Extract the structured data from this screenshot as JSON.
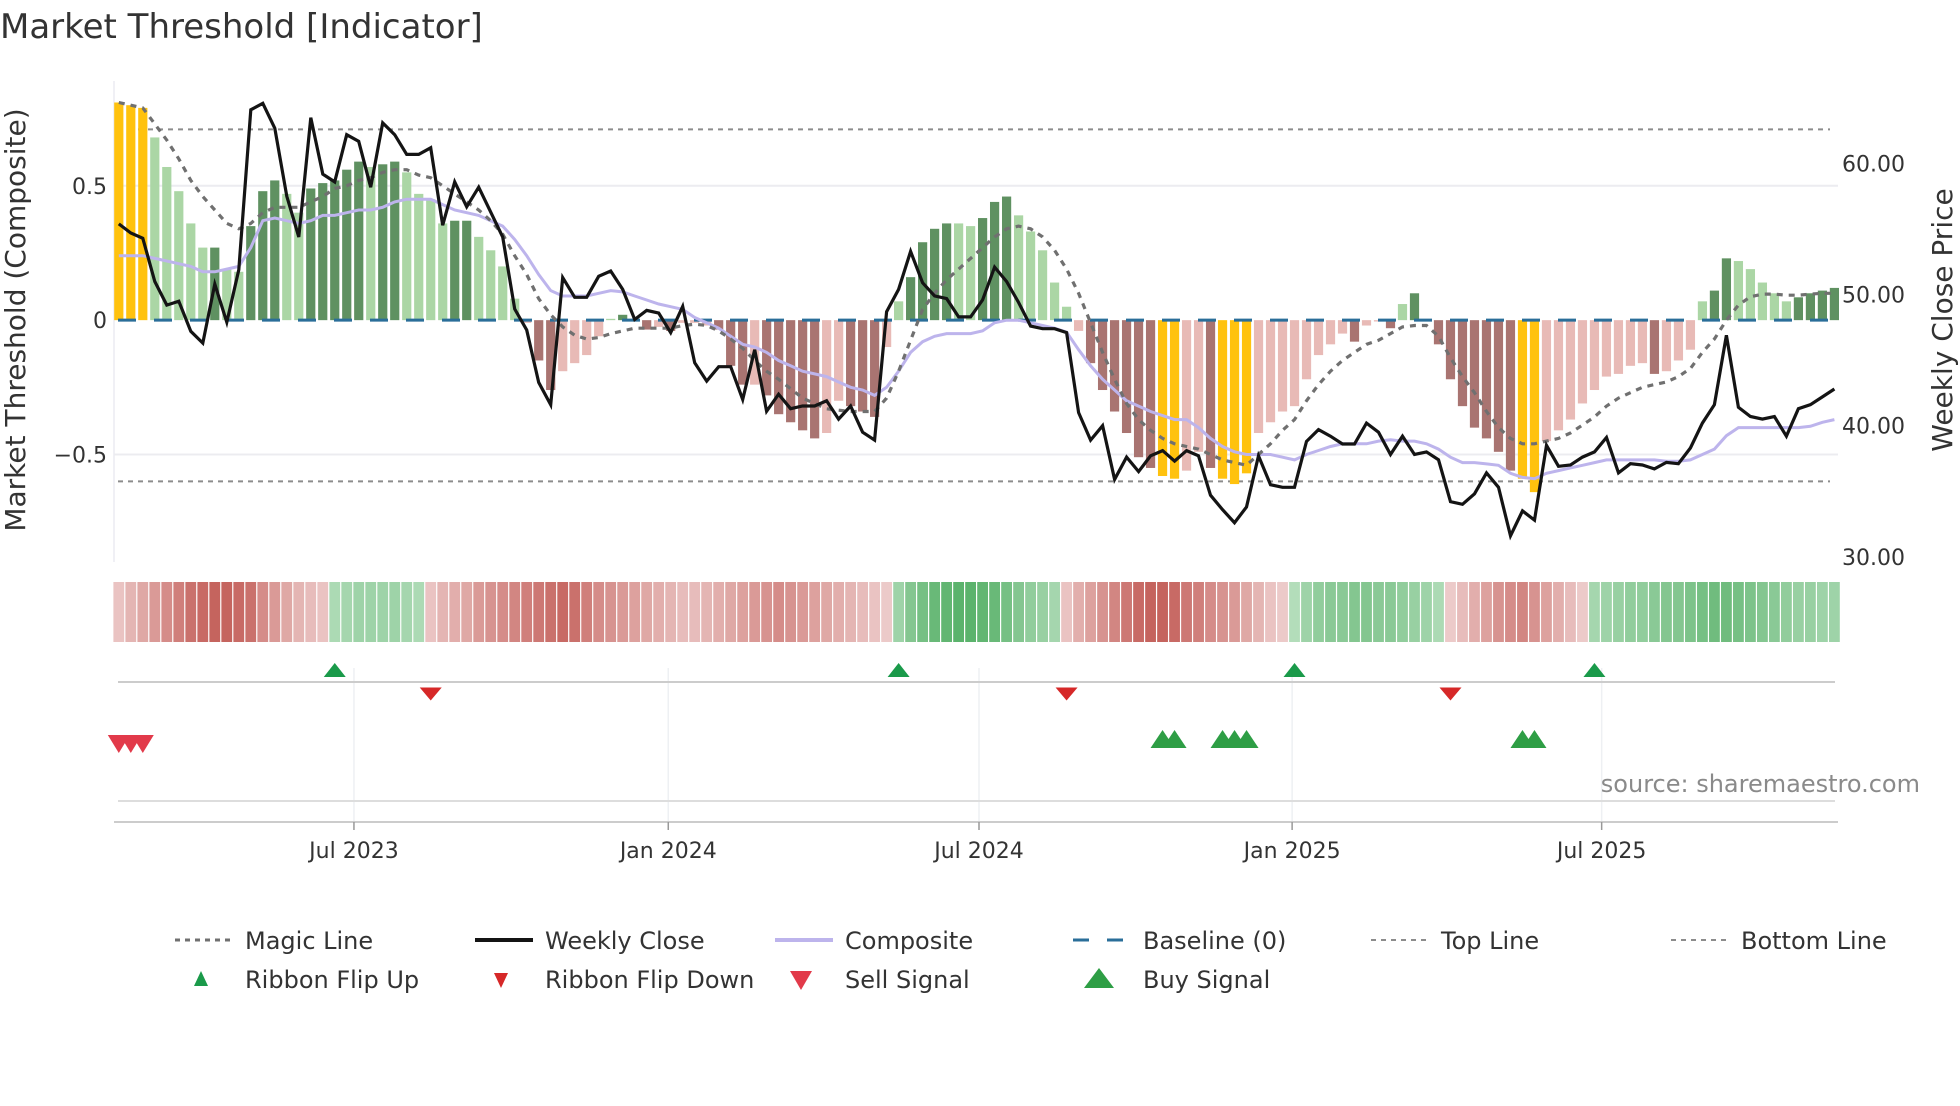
{
  "chart_data": {
    "type": "bar",
    "title": "Market Threshold [Indicator]",
    "ylabel_left": "Market Threshold (Composite)",
    "ylabel_right": "Weekly Close Price",
    "ylim_left": [
      -0.9,
      0.89
    ],
    "ylim_right": [
      29.6,
      66.3
    ],
    "yticks_left": [
      {
        "v": 0.5,
        "label": "0.5"
      },
      {
        "v": 0,
        "label": "0"
      },
      {
        "v": -0.5,
        "label": "−0.5"
      }
    ],
    "yticks_right": [
      {
        "v": 60,
        "label": "60.00"
      },
      {
        "v": 50,
        "label": "50.00"
      },
      {
        "v": 40,
        "label": "40.00"
      },
      {
        "v": 30,
        "label": "30.00"
      }
    ],
    "xticks": [
      {
        "week": 20.6,
        "label": "Jul 2023"
      },
      {
        "week": 46.8,
        "label": "Jan 2024"
      },
      {
        "week": 72.7,
        "label": "Jul 2024"
      },
      {
        "week": 98.8,
        "label": "Jan 2025"
      },
      {
        "week": 124.6,
        "label": "Jul 2025"
      }
    ],
    "x_range_weeks": [
      0.6,
      144.3
    ],
    "top_line": 0.71,
    "bottom_line": -0.6,
    "baseline": 0,
    "bar_types": {
      "Y": "signal",
      "G": "strong-up",
      "g": "weak-up",
      "R": "strong-down",
      "r": "weak-down"
    },
    "bars": [
      [
        0.81,
        "Y"
      ],
      [
        0.8,
        "Y"
      ],
      [
        0.79,
        "Y"
      ],
      [
        0.68,
        "g"
      ],
      [
        0.57,
        "g"
      ],
      [
        0.48,
        "g"
      ],
      [
        0.36,
        "g"
      ],
      [
        0.27,
        "g"
      ],
      [
        0.27,
        "G"
      ],
      [
        0.19,
        "g"
      ],
      [
        0.18,
        "g"
      ],
      [
        0.35,
        "G"
      ],
      [
        0.48,
        "G"
      ],
      [
        0.52,
        "G"
      ],
      [
        0.47,
        "g"
      ],
      [
        0.4,
        "g"
      ],
      [
        0.49,
        "G"
      ],
      [
        0.51,
        "G"
      ],
      [
        0.52,
        "G"
      ],
      [
        0.56,
        "G"
      ],
      [
        0.59,
        "G"
      ],
      [
        0.57,
        "g"
      ],
      [
        0.58,
        "G"
      ],
      [
        0.59,
        "G"
      ],
      [
        0.55,
        "g"
      ],
      [
        0.47,
        "g"
      ],
      [
        0.45,
        "g"
      ],
      [
        0.36,
        "g"
      ],
      [
        0.37,
        "G"
      ],
      [
        0.37,
        "G"
      ],
      [
        0.31,
        "g"
      ],
      [
        0.26,
        "g"
      ],
      [
        0.2,
        "g"
      ],
      [
        0.08,
        "g"
      ],
      [
        -0.01,
        "r"
      ],
      [
        -0.15,
        "R"
      ],
      [
        -0.26,
        "R"
      ],
      [
        -0.19,
        "r"
      ],
      [
        -0.16,
        "r"
      ],
      [
        -0.13,
        "r"
      ],
      [
        -0.06,
        "r"
      ],
      [
        0.005,
        "g"
      ],
      [
        0.02,
        "G"
      ],
      [
        -0.005,
        "r"
      ],
      [
        -0.035,
        "R"
      ],
      [
        -0.025,
        "r"
      ],
      [
        -0.04,
        "R"
      ],
      [
        -0.01,
        "r"
      ],
      [
        -0.01,
        "r"
      ],
      [
        -0.02,
        "r"
      ],
      [
        -0.035,
        "R"
      ],
      [
        -0.17,
        "R"
      ],
      [
        -0.24,
        "R"
      ],
      [
        -0.24,
        "r"
      ],
      [
        -0.28,
        "R"
      ],
      [
        -0.35,
        "R"
      ],
      [
        -0.38,
        "R"
      ],
      [
        -0.41,
        "R"
      ],
      [
        -0.44,
        "R"
      ],
      [
        -0.42,
        "r"
      ],
      [
        -0.3,
        "r"
      ],
      [
        -0.32,
        "R"
      ],
      [
        -0.34,
        "R"
      ],
      [
        -0.36,
        "R"
      ],
      [
        -0.1,
        "r"
      ],
      [
        0.07,
        "g"
      ],
      [
        0.16,
        "G"
      ],
      [
        0.29,
        "G"
      ],
      [
        0.34,
        "G"
      ],
      [
        0.36,
        "G"
      ],
      [
        0.36,
        "g"
      ],
      [
        0.35,
        "g"
      ],
      [
        0.38,
        "G"
      ],
      [
        0.44,
        "G"
      ],
      [
        0.46,
        "G"
      ],
      [
        0.39,
        "g"
      ],
      [
        0.33,
        "g"
      ],
      [
        0.26,
        "g"
      ],
      [
        0.14,
        "g"
      ],
      [
        0.05,
        "g"
      ],
      [
        -0.04,
        "r"
      ],
      [
        -0.16,
        "R"
      ],
      [
        -0.26,
        "R"
      ],
      [
        -0.34,
        "R"
      ],
      [
        -0.42,
        "R"
      ],
      [
        -0.51,
        "R"
      ],
      [
        -0.55,
        "R"
      ],
      [
        -0.58,
        "Y"
      ],
      [
        -0.59,
        "Y"
      ],
      [
        -0.56,
        "r"
      ],
      [
        -0.49,
        "r"
      ],
      [
        -0.55,
        "R"
      ],
      [
        -0.59,
        "Y"
      ],
      [
        -0.61,
        "Y"
      ],
      [
        -0.57,
        "Y"
      ],
      [
        -0.42,
        "r"
      ],
      [
        -0.38,
        "r"
      ],
      [
        -0.34,
        "r"
      ],
      [
        -0.32,
        "r"
      ],
      [
        -0.22,
        "r"
      ],
      [
        -0.13,
        "r"
      ],
      [
        -0.09,
        "r"
      ],
      [
        -0.05,
        "r"
      ],
      [
        -0.08,
        "R"
      ],
      [
        -0.02,
        "r"
      ],
      [
        -0.005,
        "r"
      ],
      [
        -0.03,
        "R"
      ],
      [
        0.06,
        "g"
      ],
      [
        0.1,
        "G"
      ],
      [
        -0.005,
        "r"
      ],
      [
        -0.09,
        "R"
      ],
      [
        -0.22,
        "R"
      ],
      [
        -0.32,
        "R"
      ],
      [
        -0.4,
        "R"
      ],
      [
        -0.44,
        "R"
      ],
      [
        -0.49,
        "R"
      ],
      [
        -0.56,
        "R"
      ],
      [
        -0.59,
        "Y"
      ],
      [
        -0.64,
        "Y"
      ],
      [
        -0.45,
        "r"
      ],
      [
        -0.41,
        "r"
      ],
      [
        -0.37,
        "r"
      ],
      [
        -0.31,
        "r"
      ],
      [
        -0.26,
        "r"
      ],
      [
        -0.21,
        "r"
      ],
      [
        -0.2,
        "r"
      ],
      [
        -0.17,
        "r"
      ],
      [
        -0.16,
        "r"
      ],
      [
        -0.2,
        "R"
      ],
      [
        -0.19,
        "r"
      ],
      [
        -0.15,
        "r"
      ],
      [
        -0.11,
        "r"
      ],
      [
        0.07,
        "g"
      ],
      [
        0.11,
        "G"
      ],
      [
        0.23,
        "G"
      ],
      [
        0.22,
        "g"
      ],
      [
        0.19,
        "g"
      ],
      [
        0.14,
        "g"
      ],
      [
        0.1,
        "g"
      ],
      [
        0.07,
        "g"
      ],
      [
        0.085,
        "G"
      ],
      [
        0.1,
        "G"
      ],
      [
        0.11,
        "G"
      ],
      [
        0.12,
        "G"
      ]
    ],
    "weekly_close": [
      55.4,
      54.7,
      54.3,
      51.0,
      49.2,
      49.5,
      47.2,
      46.3,
      50.8,
      47.9,
      51.9,
      64.1,
      64.6,
      62.7,
      57.5,
      54.4,
      63.5,
      59.2,
      58.6,
      62.2,
      61.7,
      58.2,
      63.1,
      62.2,
      60.7,
      60.7,
      61.2,
      55.3,
      58.6,
      56.7,
      58.2,
      56.3,
      54.4,
      48.9,
      47.3,
      43.3,
      41.6,
      51.3,
      49.8,
      49.8,
      51.4,
      51.8,
      50.4,
      48.1,
      48.8,
      48.6,
      47.1,
      49.1,
      44.8,
      43.4,
      44.5,
      44.5,
      42.0,
      45.8,
      41.1,
      42.4,
      41.3,
      41.5,
      41.5,
      41.9,
      40.5,
      41.5,
      39.5,
      38.9,
      48.7,
      50.4,
      53.3,
      50.9,
      49.9,
      49.7,
      48.3,
      48.3,
      49.6,
      52.1,
      51.0,
      49.4,
      47.6,
      47.4,
      47.4,
      47.1,
      41.0,
      38.9,
      40.0,
      35.9,
      37.6,
      36.5,
      37.7,
      38.1,
      37.3,
      38.1,
      37.7,
      34.7,
      33.6,
      32.6,
      33.8,
      37.7,
      35.5,
      35.3,
      35.3,
      38.8,
      39.7,
      39.2,
      38.6,
      38.6,
      40.2,
      39.5,
      37.8,
      39.2,
      37.8,
      38.0,
      37.4,
      34.2,
      34.0,
      34.8,
      36.4,
      35.3,
      31.6,
      33.5,
      32.8,
      38.5,
      36.9,
      37.0,
      37.6,
      38.0,
      39.1,
      36.4,
      37.1,
      37.0,
      36.7,
      37.2,
      37.1,
      38.3,
      40.2,
      41.6,
      46.9,
      41.4,
      40.7,
      40.5,
      40.7,
      39.2,
      41.3,
      41.6,
      42.2,
      42.8
    ],
    "composite": [
      0.24,
      0.24,
      0.24,
      0.23,
      0.22,
      0.21,
      0.2,
      0.18,
      0.18,
      0.19,
      0.2,
      0.27,
      0.37,
      0.38,
      0.37,
      0.36,
      0.37,
      0.39,
      0.39,
      0.4,
      0.41,
      0.41,
      0.42,
      0.44,
      0.45,
      0.45,
      0.45,
      0.43,
      0.41,
      0.4,
      0.39,
      0.37,
      0.35,
      0.3,
      0.24,
      0.17,
      0.11,
      0.09,
      0.09,
      0.09,
      0.1,
      0.11,
      0.105,
      0.09,
      0.075,
      0.06,
      0.05,
      0.04,
      0.01,
      -0.01,
      -0.03,
      -0.06,
      -0.09,
      -0.1,
      -0.12,
      -0.15,
      -0.17,
      -0.19,
      -0.2,
      -0.21,
      -0.23,
      -0.25,
      -0.26,
      -0.28,
      -0.25,
      -0.19,
      -0.12,
      -0.08,
      -0.06,
      -0.05,
      -0.05,
      -0.05,
      -0.04,
      -0.01,
      0.0,
      0.0,
      -0.01,
      -0.02,
      -0.03,
      -0.045,
      -0.11,
      -0.17,
      -0.22,
      -0.26,
      -0.3,
      -0.32,
      -0.34,
      -0.355,
      -0.37,
      -0.37,
      -0.4,
      -0.44,
      -0.47,
      -0.49,
      -0.5,
      -0.5,
      -0.5,
      -0.51,
      -0.52,
      -0.5,
      -0.485,
      -0.47,
      -0.46,
      -0.46,
      -0.46,
      -0.45,
      -0.445,
      -0.45,
      -0.45,
      -0.46,
      -0.48,
      -0.51,
      -0.53,
      -0.53,
      -0.535,
      -0.54,
      -0.57,
      -0.585,
      -0.59,
      -0.57,
      -0.56,
      -0.55,
      -0.54,
      -0.53,
      -0.52,
      -0.52,
      -0.52,
      -0.52,
      -0.52,
      -0.525,
      -0.525,
      -0.52,
      -0.5,
      -0.48,
      -0.43,
      -0.4,
      -0.4,
      -0.4,
      -0.4,
      -0.4,
      -0.4,
      -0.395,
      -0.38,
      -0.37
    ],
    "magic_line": [
      0.81,
      0.8,
      0.79,
      0.73,
      0.67,
      0.6,
      0.52,
      0.46,
      0.41,
      0.36,
      0.34,
      0.36,
      0.4,
      0.42,
      0.42,
      0.42,
      0.44,
      0.46,
      0.49,
      0.5,
      0.52,
      0.53,
      0.55,
      0.56,
      0.56,
      0.54,
      0.53,
      0.5,
      0.47,
      0.44,
      0.41,
      0.37,
      0.32,
      0.24,
      0.17,
      0.08,
      0.02,
      -0.025,
      -0.056,
      -0.07,
      -0.065,
      -0.05,
      -0.04,
      -0.03,
      -0.03,
      -0.03,
      -0.03,
      -0.02,
      -0.015,
      -0.02,
      -0.04,
      -0.07,
      -0.105,
      -0.15,
      -0.19,
      -0.22,
      -0.255,
      -0.29,
      -0.31,
      -0.33,
      -0.335,
      -0.34,
      -0.34,
      -0.34,
      -0.29,
      -0.19,
      -0.075,
      0.04,
      0.1,
      0.15,
      0.19,
      0.23,
      0.27,
      0.31,
      0.34,
      0.35,
      0.34,
      0.31,
      0.26,
      0.19,
      0.1,
      -0.01,
      -0.12,
      -0.22,
      -0.31,
      -0.37,
      -0.41,
      -0.44,
      -0.46,
      -0.47,
      -0.48,
      -0.5,
      -0.52,
      -0.53,
      -0.54,
      -0.5,
      -0.46,
      -0.41,
      -0.37,
      -0.3,
      -0.24,
      -0.19,
      -0.15,
      -0.12,
      -0.09,
      -0.075,
      -0.05,
      -0.025,
      -0.02,
      -0.02,
      -0.06,
      -0.14,
      -0.21,
      -0.27,
      -0.34,
      -0.4,
      -0.44,
      -0.46,
      -0.46,
      -0.45,
      -0.44,
      -0.42,
      -0.39,
      -0.36,
      -0.32,
      -0.29,
      -0.27,
      -0.25,
      -0.24,
      -0.23,
      -0.21,
      -0.18,
      -0.12,
      -0.07,
      0.0,
      0.056,
      0.087,
      0.097,
      0.097,
      0.093,
      0.093,
      0.097,
      0.1,
      0.1
    ],
    "ribbon": [
      -0.2,
      -0.3,
      -0.4,
      -0.5,
      -0.6,
      -0.7,
      -0.8,
      -0.85,
      -0.9,
      -0.9,
      -0.85,
      -0.8,
      -0.6,
      -0.5,
      -0.4,
      -0.3,
      -0.25,
      -0.2,
      0.3,
      0.35,
      0.4,
      0.4,
      0.4,
      0.4,
      0.35,
      0.3,
      -0.2,
      -0.3,
      -0.35,
      -0.4,
      -0.5,
      -0.55,
      -0.6,
      -0.65,
      -0.7,
      -0.75,
      -0.8,
      -0.85,
      -0.8,
      -0.7,
      -0.6,
      -0.55,
      -0.5,
      -0.45,
      -0.4,
      -0.35,
      -0.3,
      -0.25,
      -0.25,
      -0.3,
      -0.35,
      -0.4,
      -0.45,
      -0.5,
      -0.55,
      -0.6,
      -0.55,
      -0.5,
      -0.45,
      -0.4,
      -0.35,
      -0.3,
      -0.25,
      -0.2,
      -0.15,
      0.4,
      0.6,
      0.7,
      0.8,
      0.85,
      0.9,
      0.9,
      0.85,
      0.8,
      0.7,
      0.6,
      0.5,
      0.45,
      0.35,
      -0.2,
      -0.35,
      -0.45,
      -0.55,
      -0.65,
      -0.75,
      -0.85,
      -0.9,
      -0.9,
      -0.85,
      -0.75,
      -0.7,
      -0.6,
      -0.55,
      -0.5,
      -0.4,
      -0.3,
      -0.2,
      -0.15,
      0.25,
      0.4,
      0.5,
      0.55,
      0.55,
      0.6,
      0.6,
      0.55,
      0.55,
      0.5,
      0.45,
      0.4,
      0.3,
      -0.15,
      -0.25,
      -0.35,
      -0.45,
      -0.55,
      -0.6,
      -0.65,
      -0.55,
      -0.45,
      -0.35,
      -0.25,
      -0.15,
      0.35,
      0.4,
      0.45,
      0.5,
      0.5,
      0.55,
      0.6,
      0.6,
      0.65,
      0.7,
      0.75,
      0.75,
      0.7,
      0.65,
      0.6,
      0.55,
      0.5,
      0.45,
      0.45,
      0.4,
      0.4
    ],
    "ribbon_flip_up_weeks": [
      19,
      66,
      99,
      124
    ],
    "ribbon_flip_down_weeks": [
      27,
      80,
      112
    ],
    "sell_signal_weeks": [
      1,
      2,
      3
    ],
    "buy_signal_weeks": [
      88,
      89,
      93,
      94,
      95,
      118,
      119
    ],
    "legend": [
      {
        "label": "Magic Line",
        "marker": "dotted-line"
      },
      {
        "label": "Weekly Close",
        "marker": "solid-line"
      },
      {
        "label": "Composite",
        "marker": "solid-line-lavender"
      },
      {
        "label": "Baseline (0)",
        "marker": "dashed-line"
      },
      {
        "label": "Top Line",
        "marker": "fine-dashed-line"
      },
      {
        "label": "Bottom Line",
        "marker": "fine-dashed-line"
      },
      {
        "label": "Ribbon Flip Up",
        "marker": "triangle-up"
      },
      {
        "label": "Ribbon Flip Down",
        "marker": "triangle-down"
      },
      {
        "label": "Sell Signal",
        "marker": "triangle-down-large"
      },
      {
        "label": "Buy Signal",
        "marker": "triangle-up-large"
      }
    ],
    "legend_position": "bottom",
    "grid": true
  },
  "source": "source: sharemaestro.com",
  "colors": {
    "signal": "#FFC20E",
    "strong_up": "#5f9161",
    "weak_up": "#abd6a5",
    "strong_down": "#a97471",
    "weak_down": "#e8bab6",
    "close": "#141414",
    "composite": "#bdb4ec",
    "magic": "#707070",
    "baseline": "#2a6e99",
    "guide": "#8c8c8c",
    "flip_up": "#1a9a4a",
    "flip_down": "#d62828",
    "sell": "#e23a4a",
    "buy": "#2e9e45"
  }
}
